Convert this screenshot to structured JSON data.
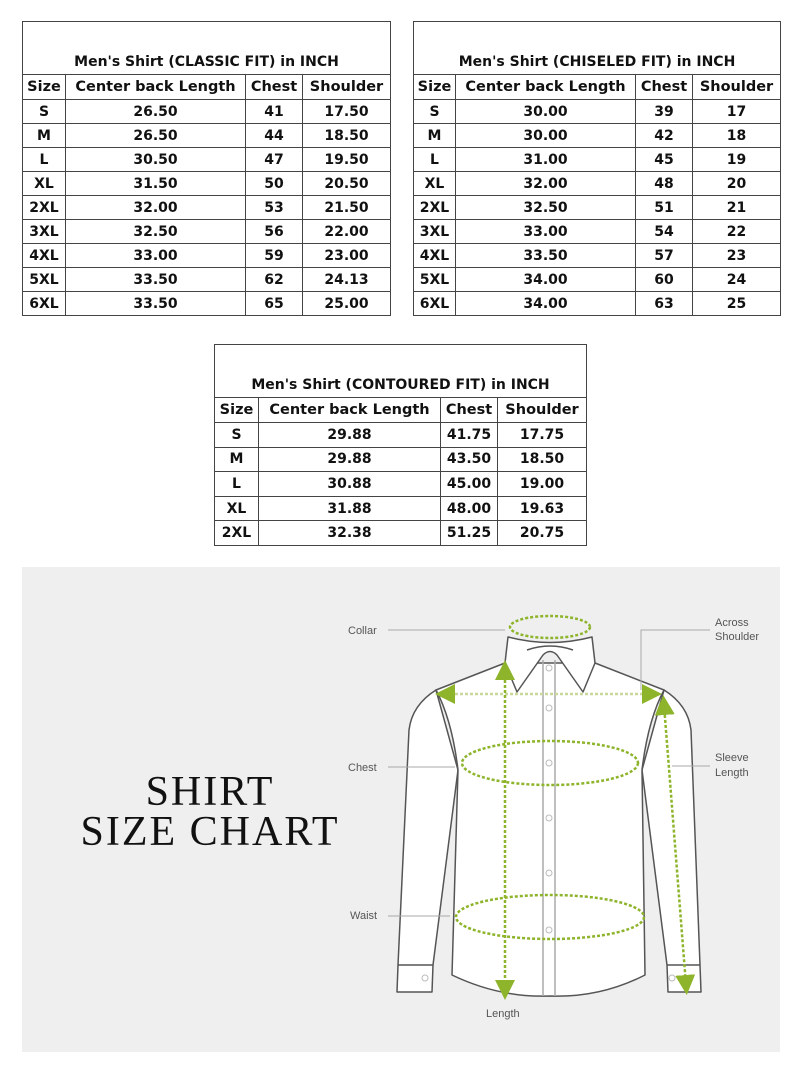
{
  "tables": {
    "headers": [
      "Size",
      "Center back Length",
      "Chest",
      "Shoulder"
    ],
    "classic": {
      "title": "Men's Shirt (CLASSIC FIT) in INCH",
      "rows": [
        [
          "S",
          "26.50",
          "41",
          "17.50"
        ],
        [
          "M",
          "26.50",
          "44",
          "18.50"
        ],
        [
          "L",
          "30.50",
          "47",
          "19.50"
        ],
        [
          "XL",
          "31.50",
          "50",
          "20.50"
        ],
        [
          "2XL",
          "32.00",
          "53",
          "21.50"
        ],
        [
          "3XL",
          "32.50",
          "56",
          "22.00"
        ],
        [
          "4XL",
          "33.00",
          "59",
          "23.00"
        ],
        [
          "5XL",
          "33.50",
          "62",
          "24.13"
        ],
        [
          "6XL",
          "33.50",
          "65",
          "25.00"
        ]
      ]
    },
    "chiseled": {
      "title": "Men's Shirt (CHISELED FIT) in INCH",
      "rows": [
        [
          "S",
          "30.00",
          "39",
          "17"
        ],
        [
          "M",
          "30.00",
          "42",
          "18"
        ],
        [
          "L",
          "31.00",
          "45",
          "19"
        ],
        [
          "XL",
          "32.00",
          "48",
          "20"
        ],
        [
          "2XL",
          "32.50",
          "51",
          "21"
        ],
        [
          "3XL",
          "33.00",
          "54",
          "22"
        ],
        [
          "4XL",
          "33.50",
          "57",
          "23"
        ],
        [
          "5XL",
          "34.00",
          "60",
          "24"
        ],
        [
          "6XL",
          "34.00",
          "63",
          "25"
        ]
      ]
    },
    "contoured": {
      "title": "Men's Shirt (CONTOURED FIT) in INCH",
      "rows": [
        [
          "S",
          "29.88",
          "41.75",
          "17.75"
        ],
        [
          "M",
          "29.88",
          "43.50",
          "18.50"
        ],
        [
          "L",
          "30.88",
          "45.00",
          "19.00"
        ],
        [
          "XL",
          "31.88",
          "48.00",
          "19.63"
        ],
        [
          "2XL",
          "32.38",
          "51.25",
          "20.75"
        ]
      ]
    }
  },
  "illustration": {
    "title_line1": "SHIRT",
    "title_line2": "SIZE CHART",
    "labels": {
      "collar": "Collar",
      "across_shoulder_1": "Across",
      "across_shoulder_2": "Shoulder",
      "chest": "Chest",
      "sleeve_length_1": "Sleeve",
      "sleeve_length_2": "Length",
      "waist": "Waist",
      "length": "Length"
    },
    "colors": {
      "measure": "#8db42a",
      "panel": "#efefef",
      "outline": "#555555"
    }
  }
}
